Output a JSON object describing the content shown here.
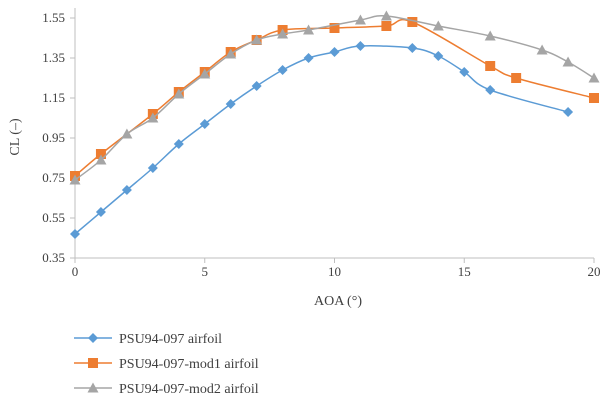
{
  "chart_data": {
    "type": "line",
    "title": "",
    "xlabel": "AOA (°)",
    "ylabel": "CL (–)",
    "xlim": [
      0,
      20
    ],
    "ylim": [
      0.35,
      1.6
    ],
    "xticks": [
      0,
      5,
      10,
      15,
      20
    ],
    "yticks": [
      0.35,
      0.55,
      0.75,
      0.95,
      1.15,
      1.35,
      1.55
    ],
    "ytick_labels": [
      "0.35",
      "0.55",
      "0.75",
      "0.95",
      "1.15",
      "1.35",
      "1.55"
    ],
    "grid": false,
    "legend_position": "bottom-left",
    "series": [
      {
        "name": "PSU94-097 airfoil",
        "color": "#5b9bd5",
        "marker": "diamond",
        "points": [
          [
            0,
            0.47
          ],
          [
            1,
            0.58
          ],
          [
            2,
            0.69
          ],
          [
            3,
            0.8
          ],
          [
            4,
            0.92
          ],
          [
            5,
            1.02
          ],
          [
            6,
            1.12
          ],
          [
            7,
            1.21
          ],
          [
            8,
            1.29
          ],
          [
            9,
            1.35
          ],
          [
            10,
            1.38
          ],
          [
            11,
            1.41
          ],
          [
            13,
            1.4
          ],
          [
            14,
            1.36
          ],
          [
            15,
            1.28
          ],
          [
            16,
            1.19
          ],
          [
            19,
            1.08
          ]
        ]
      },
      {
        "name": "PSU94-097-mod1 airfoil",
        "color": "#ed7d31",
        "marker": "square",
        "points": [
          [
            0,
            0.76
          ],
          [
            1,
            0.87
          ],
          [
            3,
            1.07
          ],
          [
            4,
            1.18
          ],
          [
            5,
            1.28
          ],
          [
            6,
            1.38
          ],
          [
            7,
            1.44
          ],
          [
            8,
            1.49
          ],
          [
            10,
            1.5
          ],
          [
            12,
            1.51
          ],
          [
            13,
            1.53
          ],
          [
            16,
            1.31
          ],
          [
            17,
            1.25
          ],
          [
            20,
            1.15
          ]
        ]
      },
      {
        "name": "PSU94-097-mod2 airfoil",
        "color": "#a5a5a5",
        "marker": "triangle",
        "points": [
          [
            0,
            0.74
          ],
          [
            1,
            0.84
          ],
          [
            2,
            0.97
          ],
          [
            3,
            1.05
          ],
          [
            4,
            1.17
          ],
          [
            5,
            1.27
          ],
          [
            6,
            1.37
          ],
          [
            7,
            1.44
          ],
          [
            8,
            1.47
          ],
          [
            9,
            1.49
          ],
          [
            11,
            1.54
          ],
          [
            12,
            1.56
          ],
          [
            14,
            1.51
          ],
          [
            16,
            1.46
          ],
          [
            18,
            1.39
          ],
          [
            19,
            1.33
          ],
          [
            20,
            1.25
          ]
        ]
      }
    ]
  }
}
